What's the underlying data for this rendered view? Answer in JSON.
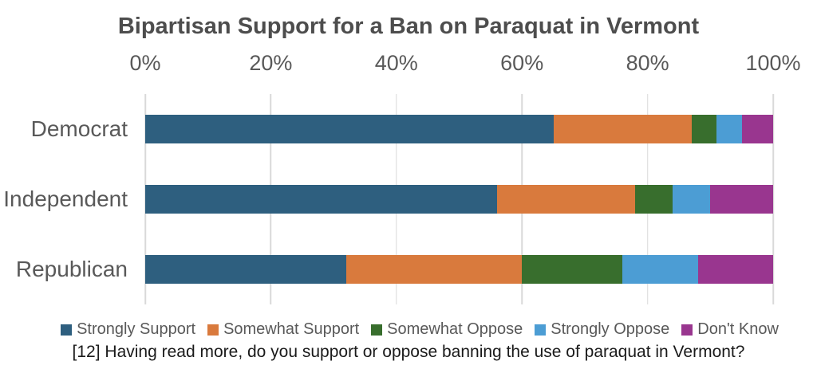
{
  "title": "Bipartisan Support for a Ban on Paraquat in Vermont",
  "caption": "[12] Having read more, do you support or oppose banning the use of paraquat in Vermont?",
  "chart_data": {
    "type": "bar",
    "orientation": "horizontal-stacked",
    "title": "Bipartisan Support for a Ban on Paraquat in Vermont",
    "categories": [
      "Democrat",
      "Independent",
      "Republican"
    ],
    "series": [
      {
        "name": "Strongly Support",
        "color": "#2E5F7F",
        "values": [
          65,
          56,
          32
        ]
      },
      {
        "name": "Somewhat Support",
        "color": "#D97A3D",
        "values": [
          22,
          22,
          28
        ]
      },
      {
        "name": "Somewhat Oppose",
        "color": "#386E2D",
        "values": [
          4,
          6,
          16
        ]
      },
      {
        "name": "Strongly Oppose",
        "color": "#4C9DD4",
        "values": [
          4,
          6,
          12
        ]
      },
      {
        "name": "Don't Know",
        "color": "#99368F",
        "values": [
          5,
          10,
          12
        ]
      }
    ],
    "xlabel": "",
    "ylabel": "",
    "x_ticks": [
      "0%",
      "20%",
      "40%",
      "60%",
      "80%",
      "100%"
    ],
    "xlim": [
      0,
      100
    ],
    "grid": true,
    "gridline_color": "#D9D9D9",
    "legend_position": "bottom",
    "annotation": "[12] Having read more, do you support or oppose banning the use of paraquat in Vermont?"
  }
}
